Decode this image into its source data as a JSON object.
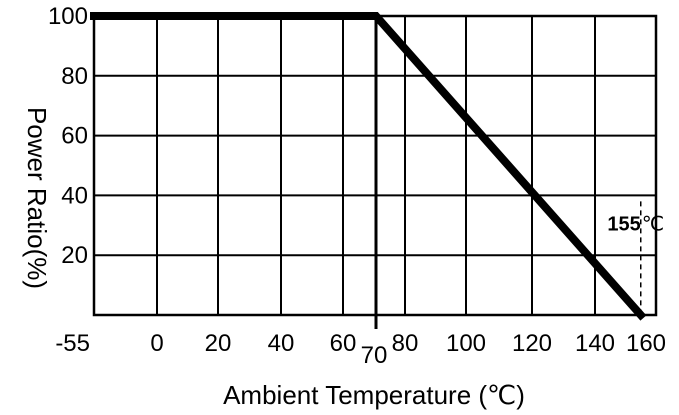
{
  "chart_data": {
    "type": "line",
    "title": "",
    "xlabel": "Ambient Temperature (℃)",
    "ylabel": "Power Ratio(%)",
    "x_ticks": [
      -55,
      0,
      20,
      40,
      60,
      80,
      100,
      120,
      140,
      160
    ],
    "x_ticks_label": [
      "-55",
      "0",
      "20",
      "40",
      "60",
      "80",
      "100",
      "120",
      "140",
      "160"
    ],
    "y_ticks": [
      20,
      40,
      60,
      80,
      100
    ],
    "y_ticks_label": [
      "20",
      "40",
      "60",
      "80",
      "100"
    ],
    "xlim": [
      -55,
      160
    ],
    "ylim": [
      0,
      100
    ],
    "grid": true,
    "series": [
      {
        "x": [
          -55,
          70,
          155
        ],
        "y": [
          100,
          100,
          0
        ]
      }
    ],
    "annotations": [
      {
        "label": "70",
        "x": 70,
        "y": 0
      },
      {
        "label": "155",
        "unit": "℃",
        "x": 155,
        "y": 0,
        "y_top": 38
      }
    ],
    "line_color": "#000000"
  }
}
